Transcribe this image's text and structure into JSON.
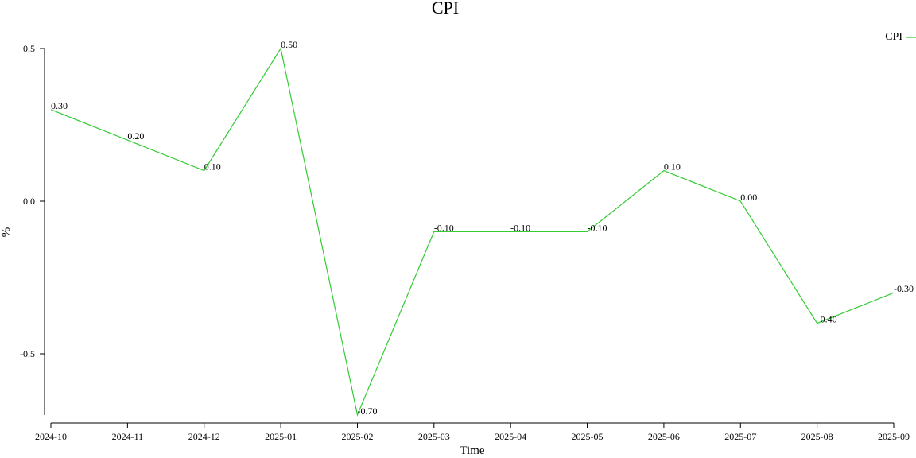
{
  "chart_data": {
    "type": "line",
    "title": "CPI",
    "xlabel": "Time",
    "ylabel": "%",
    "x": [
      "2024-10",
      "2024-11",
      "2024-12",
      "2025-01",
      "2025-02",
      "2025-03",
      "2025-04",
      "2025-05",
      "2025-06",
      "2025-07",
      "2025-08",
      "2025-09"
    ],
    "series": [
      {
        "name": "CPI",
        "color": "#33cc33",
        "values": [
          0.3,
          0.2,
          0.1,
          0.5,
          -0.7,
          -0.1,
          -0.1,
          -0.1,
          0.1,
          0.0,
          -0.4,
          -0.3
        ],
        "labels": [
          "0.30",
          "0.20",
          "0.10",
          "0.50",
          "-0.70",
          "-0.10",
          "-0.10",
          "-0.10",
          "0.10",
          "0.00",
          "-0.40",
          "-0.30"
        ]
      }
    ],
    "yticks": [
      0.5,
      0.0,
      -0.5
    ],
    "ytick_labels": [
      "0.5",
      "0.0",
      "-0.5"
    ],
    "ylim": [
      -0.7,
      0.5
    ],
    "grid": false,
    "legend": "top-right"
  }
}
